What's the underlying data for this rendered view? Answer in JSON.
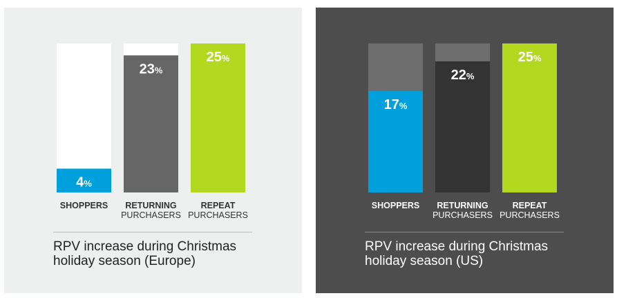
{
  "chart_data": [
    {
      "type": "bar",
      "categories": [
        {
          "line1": "SHOPPERS",
          "line2": ""
        },
        {
          "line1": "RETURNING",
          "line2": "PURCHASERS"
        },
        {
          "line1": "REPEAT",
          "line2": "PURCHASERS"
        }
      ],
      "values": [
        4,
        23,
        25
      ],
      "value_labels": [
        "4",
        "23",
        "25"
      ],
      "unit": "%",
      "ylim": [
        0,
        25
      ],
      "bar_colors": [
        "#00a0dc",
        "#666666",
        "#b2d81f"
      ],
      "track_color": "#ffffff",
      "value_text_color": "#ffffff",
      "label_color": "#333333",
      "caption_line1": "RPV increase during Christmas",
      "caption_line2": "holiday season (Europe)"
    },
    {
      "type": "bar",
      "categories": [
        {
          "line1": "SHOPPERS",
          "line2": ""
        },
        {
          "line1": "RETURNING",
          "line2": "PURCHASERS"
        },
        {
          "line1": "REPEAT",
          "line2": "PURCHASERS"
        }
      ],
      "values": [
        17,
        22,
        25
      ],
      "value_labels": [
        "17",
        "22",
        "25"
      ],
      "unit": "%",
      "ylim": [
        0,
        25
      ],
      "bar_colors": [
        "#00a0dc",
        "#333333",
        "#b2d81f"
      ],
      "track_color": "#6e6e6e",
      "value_text_color": "#ffffff",
      "label_color": "#ffffff",
      "caption_line1": "RPV increase during Christmas",
      "caption_line2": "holiday season (US)"
    }
  ]
}
